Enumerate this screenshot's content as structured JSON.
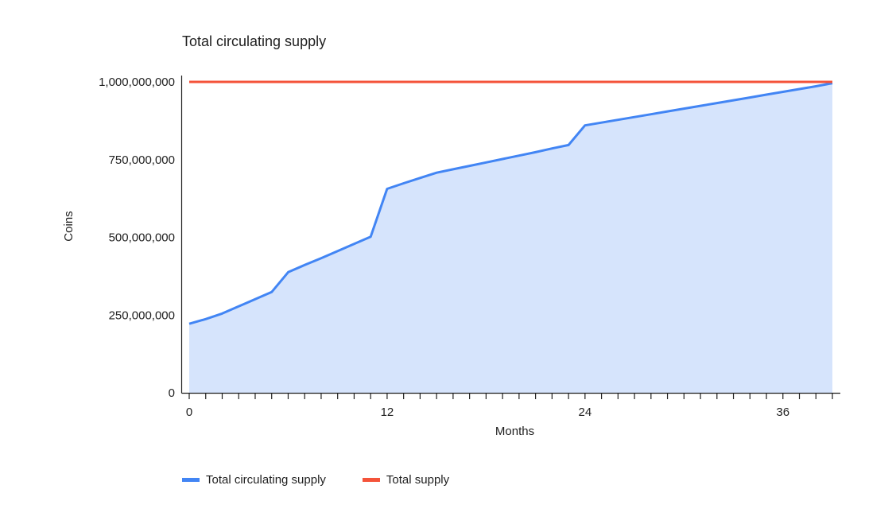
{
  "chart_data": {
    "type": "area",
    "title": "Total circulating supply",
    "xlabel": "Months",
    "ylabel": "Coins",
    "xlim": [
      0,
      39
    ],
    "ylim": [
      0,
      1000000000
    ],
    "x_ticks": [
      0,
      12,
      24,
      36
    ],
    "x_tick_labels": [
      "0",
      "12",
      "24",
      "36"
    ],
    "y_ticks": [
      0,
      250000000,
      500000000,
      750000000,
      1000000000
    ],
    "y_tick_labels": [
      "0",
      "250,000,000",
      "500,000,000",
      "750,000,000",
      "1,000,000,000"
    ],
    "grid": false,
    "legend_position": "bottom-left",
    "series": [
      {
        "name": "Total circulating supply",
        "color": "#4285f4",
        "fill": "#d6e4fc",
        "x": [
          0,
          1,
          2,
          3,
          4,
          5,
          6,
          7,
          8,
          9,
          10,
          11,
          12,
          13,
          14,
          15,
          16,
          17,
          18,
          19,
          20,
          21,
          22,
          23,
          24,
          25,
          26,
          27,
          28,
          29,
          30,
          31,
          32,
          33,
          34,
          35,
          36,
          37,
          38,
          39
        ],
        "values": [
          222000000,
          237000000,
          255000000,
          278000000,
          301000000,
          324000000,
          388000000,
          411000000,
          433000000,
          456000000,
          479000000,
          502000000,
          656000000,
          674000000,
          691000000,
          708000000,
          719000000,
          730000000,
          741000000,
          752000000,
          763000000,
          774000000,
          786000000,
          797000000,
          860000000,
          869000000,
          878000000,
          887000000,
          896000000,
          905000000,
          914000000,
          923000000,
          932000000,
          941000000,
          950000000,
          959000000,
          968000000,
          977000000,
          986000000,
          996000000
        ]
      },
      {
        "name": "Total supply",
        "color": "#f4533a",
        "x": [
          0,
          39
        ],
        "values": [
          1000000000,
          1000000000
        ]
      }
    ]
  }
}
